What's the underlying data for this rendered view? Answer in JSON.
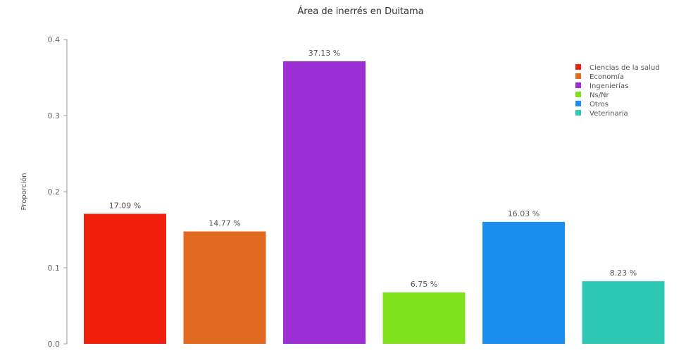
{
  "chart_data": {
    "type": "bar",
    "title": "Área de inerrés en Duitama",
    "xlabel": "",
    "ylabel": "Proporción",
    "ylim": [
      0,
      0.4
    ],
    "yticks": [
      "0.0",
      "0.1",
      "0.2",
      "0.3",
      "0.4"
    ],
    "categories": [
      "Ciencias de la salud",
      "Economía",
      "Ingenierías",
      "Ns/Nr",
      "Otros",
      "Veterinaria"
    ],
    "values": [
      0.1709,
      0.1477,
      0.3713,
      0.0675,
      0.1603,
      0.0823
    ],
    "data_labels": [
      "17.09 %",
      "14.77 %",
      "37.13 %",
      "6.75 %",
      "16.03 %",
      "8.23 %"
    ],
    "colors": [
      "#f0200d",
      "#e06a1f",
      "#9b2fd4",
      "#7fe01c",
      "#1a8ff0",
      "#2ec9b5"
    ],
    "grid": false,
    "legend": {
      "position": "top-right",
      "entries": [
        "Ciencias de la salud",
        "Economía",
        "Ingenierías",
        "Ns/Nr",
        "Otros",
        "Veterinaria"
      ]
    }
  }
}
